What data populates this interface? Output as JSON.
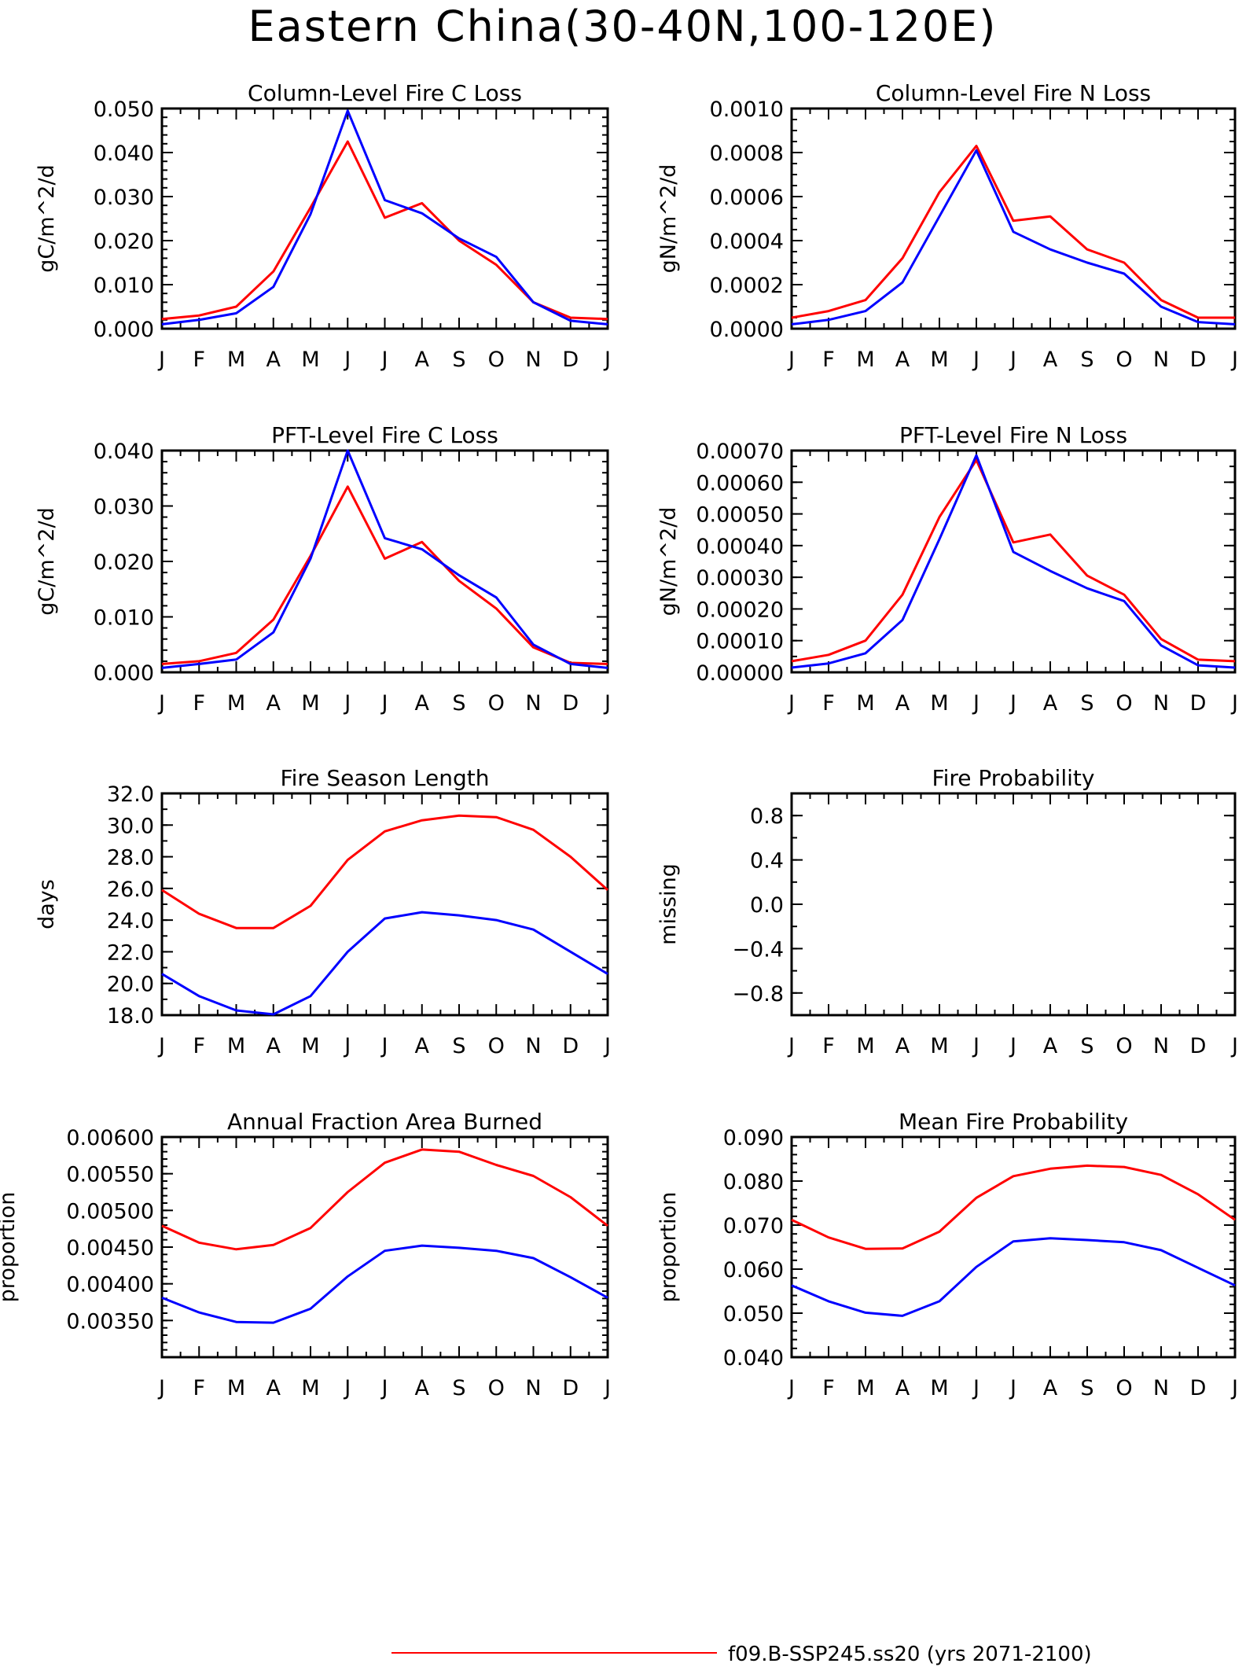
{
  "page_title": "Eastern China(30-40N,100-120E)",
  "months": [
    "J",
    "F",
    "M",
    "A",
    "M",
    "J",
    "J",
    "A",
    "S",
    "O",
    "N",
    "D",
    "J"
  ],
  "legend": [
    {
      "label": "f09.B-SSP245.ss20 (yrs 2071-2100)",
      "color": "#ff0000"
    }
  ],
  "series_colors": {
    "red": "#ff0000",
    "blue": "#0000ff"
  },
  "chart_data": [
    {
      "type": "line",
      "title": "Column-Level Fire C Loss",
      "ylabel": "gC/m^2/d",
      "categories": [
        "J",
        "F",
        "M",
        "A",
        "M",
        "J",
        "J",
        "A",
        "S",
        "O",
        "N",
        "D",
        "J"
      ],
      "ylim": [
        0,
        0.05
      ],
      "yticks": [
        "0.000",
        "0.010",
        "0.020",
        "0.030",
        "0.040",
        "0.050"
      ],
      "yminor": 4,
      "series": [
        {
          "color": "#ff0000",
          "values": [
            0.0022,
            0.003,
            0.005,
            0.013,
            0.0275,
            0.0425,
            0.0252,
            0.0285,
            0.02,
            0.0145,
            0.006,
            0.0025,
            0.0022
          ]
        },
        {
          "color": "#0000ff",
          "values": [
            0.001,
            0.002,
            0.0035,
            0.0095,
            0.026,
            0.0495,
            0.0292,
            0.0262,
            0.0205,
            0.0163,
            0.006,
            0.0018,
            0.001
          ]
        }
      ]
    },
    {
      "type": "line",
      "title": "Column-Level Fire N Loss",
      "ylabel": "gN/m^2/d",
      "categories": [
        "J",
        "F",
        "M",
        "A",
        "M",
        "J",
        "J",
        "A",
        "S",
        "O",
        "N",
        "D",
        "J"
      ],
      "ylim": [
        0,
        0.001
      ],
      "yticks": [
        "0.0000",
        "0.0002",
        "0.0004",
        "0.0006",
        "0.0008",
        "0.0010"
      ],
      "yminor": 3,
      "series": [
        {
          "color": "#ff0000",
          "values": [
            5e-05,
            8e-05,
            0.00013,
            0.00032,
            0.00062,
            0.00083,
            0.00049,
            0.00051,
            0.00036,
            0.0003,
            0.00013,
            5e-05,
            5e-05
          ]
        },
        {
          "color": "#0000ff",
          "values": [
            2e-05,
            4e-05,
            8e-05,
            0.00021,
            0.00051,
            0.00081,
            0.00044,
            0.00036,
            0.0003,
            0.00025,
            0.0001,
            3e-05,
            2e-05
          ]
        }
      ]
    },
    {
      "type": "line",
      "title": "PFT-Level Fire C Loss",
      "ylabel": "gC/m^2/d",
      "categories": [
        "J",
        "F",
        "M",
        "A",
        "M",
        "J",
        "J",
        "A",
        "S",
        "O",
        "N",
        "D",
        "J"
      ],
      "ylim": [
        0,
        0.04
      ],
      "yticks": [
        "0.000",
        "0.010",
        "0.020",
        "0.030",
        "0.040"
      ],
      "yminor": 4,
      "series": [
        {
          "color": "#ff0000",
          "values": [
            0.0015,
            0.002,
            0.0035,
            0.0095,
            0.021,
            0.0335,
            0.0205,
            0.0235,
            0.0165,
            0.0115,
            0.0045,
            0.0017,
            0.0015
          ]
        },
        {
          "color": "#0000ff",
          "values": [
            0.0008,
            0.0015,
            0.0023,
            0.0072,
            0.0205,
            0.04,
            0.0242,
            0.0222,
            0.0175,
            0.0135,
            0.005,
            0.0015,
            0.0008
          ]
        }
      ]
    },
    {
      "type": "line",
      "title": "PFT-Level Fire N Loss",
      "ylabel": "gN/m^2/d",
      "categories": [
        "J",
        "F",
        "M",
        "A",
        "M",
        "J",
        "J",
        "A",
        "S",
        "O",
        "N",
        "D",
        "J"
      ],
      "ylim": [
        0,
        0.0007
      ],
      "yticks": [
        "0.00000",
        "0.00010",
        "0.00020",
        "0.00030",
        "0.00040",
        "0.00050",
        "0.00060",
        "0.00070"
      ],
      "yminor": 1,
      "series": [
        {
          "color": "#ff0000",
          "values": [
            3.5e-05,
            5.5e-05,
            0.0001,
            0.000245,
            0.00049,
            0.00067,
            0.00041,
            0.000435,
            0.000305,
            0.000245,
            0.000105,
            4e-05,
            3.5e-05
          ]
        },
        {
          "color": "#0000ff",
          "values": [
            1.5e-05,
            2.8e-05,
            6e-05,
            0.000165,
            0.00042,
            0.000685,
            0.00038,
            0.00032,
            0.000265,
            0.000225,
            8.5e-05,
            2.2e-05,
            1.5e-05
          ]
        }
      ]
    },
    {
      "type": "line",
      "title": "Fire Season Length",
      "ylabel": "days",
      "categories": [
        "J",
        "F",
        "M",
        "A",
        "M",
        "J",
        "J",
        "A",
        "S",
        "O",
        "N",
        "D",
        "J"
      ],
      "ylim": [
        18,
        32
      ],
      "yticks": [
        "18.0",
        "20.0",
        "22.0",
        "24.0",
        "26.0",
        "28.0",
        "30.0",
        "32.0"
      ],
      "yminor": 1,
      "series": [
        {
          "color": "#ff0000",
          "values": [
            25.9,
            24.4,
            23.5,
            23.5,
            24.9,
            27.8,
            29.6,
            30.3,
            30.6,
            30.5,
            29.7,
            28.0,
            25.9
          ]
        },
        {
          "color": "#0000ff",
          "values": [
            20.6,
            19.2,
            18.3,
            18.05,
            19.2,
            22.0,
            24.1,
            24.5,
            24.3,
            24.0,
            23.4,
            22.0,
            20.6
          ]
        }
      ]
    },
    {
      "type": "line",
      "title": "Fire Probability",
      "ylabel": "missing",
      "categories": [
        "J",
        "F",
        "M",
        "A",
        "M",
        "J",
        "J",
        "A",
        "S",
        "O",
        "N",
        "D",
        "J"
      ],
      "ylim": [
        -1,
        1
      ],
      "yticks_values": [
        -0.8,
        -0.4,
        0,
        0.4,
        0.8
      ],
      "yticks": [
        "−0.8",
        "−0.4",
        "0.0",
        "0.4",
        "0.8"
      ],
      "yminor": 1,
      "series": []
    },
    {
      "type": "line",
      "title": "Annual Fraction Area Burned",
      "ylabel": "proportion",
      "categories": [
        "J",
        "F",
        "M",
        "A",
        "M",
        "J",
        "J",
        "A",
        "S",
        "O",
        "N",
        "D",
        "J"
      ],
      "ylim": [
        0.003,
        0.006
      ],
      "yticks_values": [
        0.0035,
        0.004,
        0.0045,
        0.005,
        0.0055,
        0.006
      ],
      "yticks": [
        "0.00350",
        "0.00400",
        "0.00450",
        "0.00500",
        "0.00550",
        "0.00600"
      ],
      "yminor": 4,
      "series": [
        {
          "color": "#ff0000",
          "values": [
            0.00479,
            0.00456,
            0.00447,
            0.00453,
            0.00476,
            0.00525,
            0.00565,
            0.00583,
            0.0058,
            0.00562,
            0.00547,
            0.00518,
            0.00479
          ]
        },
        {
          "color": "#0000ff",
          "values": [
            0.00381,
            0.00361,
            0.00348,
            0.00347,
            0.00366,
            0.0041,
            0.00445,
            0.00452,
            0.00449,
            0.00445,
            0.00435,
            0.00409,
            0.00381
          ]
        }
      ]
    },
    {
      "type": "line",
      "title": "Mean Fire Probability",
      "ylabel": "proportion",
      "categories": [
        "J",
        "F",
        "M",
        "A",
        "M",
        "J",
        "J",
        "A",
        "S",
        "O",
        "N",
        "D",
        "J"
      ],
      "ylim": [
        0.04,
        0.09
      ],
      "yticks": [
        "0.040",
        "0.050",
        "0.060",
        "0.070",
        "0.080",
        "0.090"
      ],
      "yminor": 4,
      "series": [
        {
          "color": "#ff0000",
          "values": [
            0.0712,
            0.0672,
            0.0646,
            0.0647,
            0.0685,
            0.0762,
            0.0811,
            0.0828,
            0.0835,
            0.0832,
            0.0814,
            0.077,
            0.0712
          ]
        },
        {
          "color": "#0000ff",
          "values": [
            0.0563,
            0.0527,
            0.0501,
            0.0494,
            0.0527,
            0.0605,
            0.0663,
            0.067,
            0.0666,
            0.0661,
            0.0643,
            0.0603,
            0.0563
          ]
        }
      ]
    }
  ]
}
